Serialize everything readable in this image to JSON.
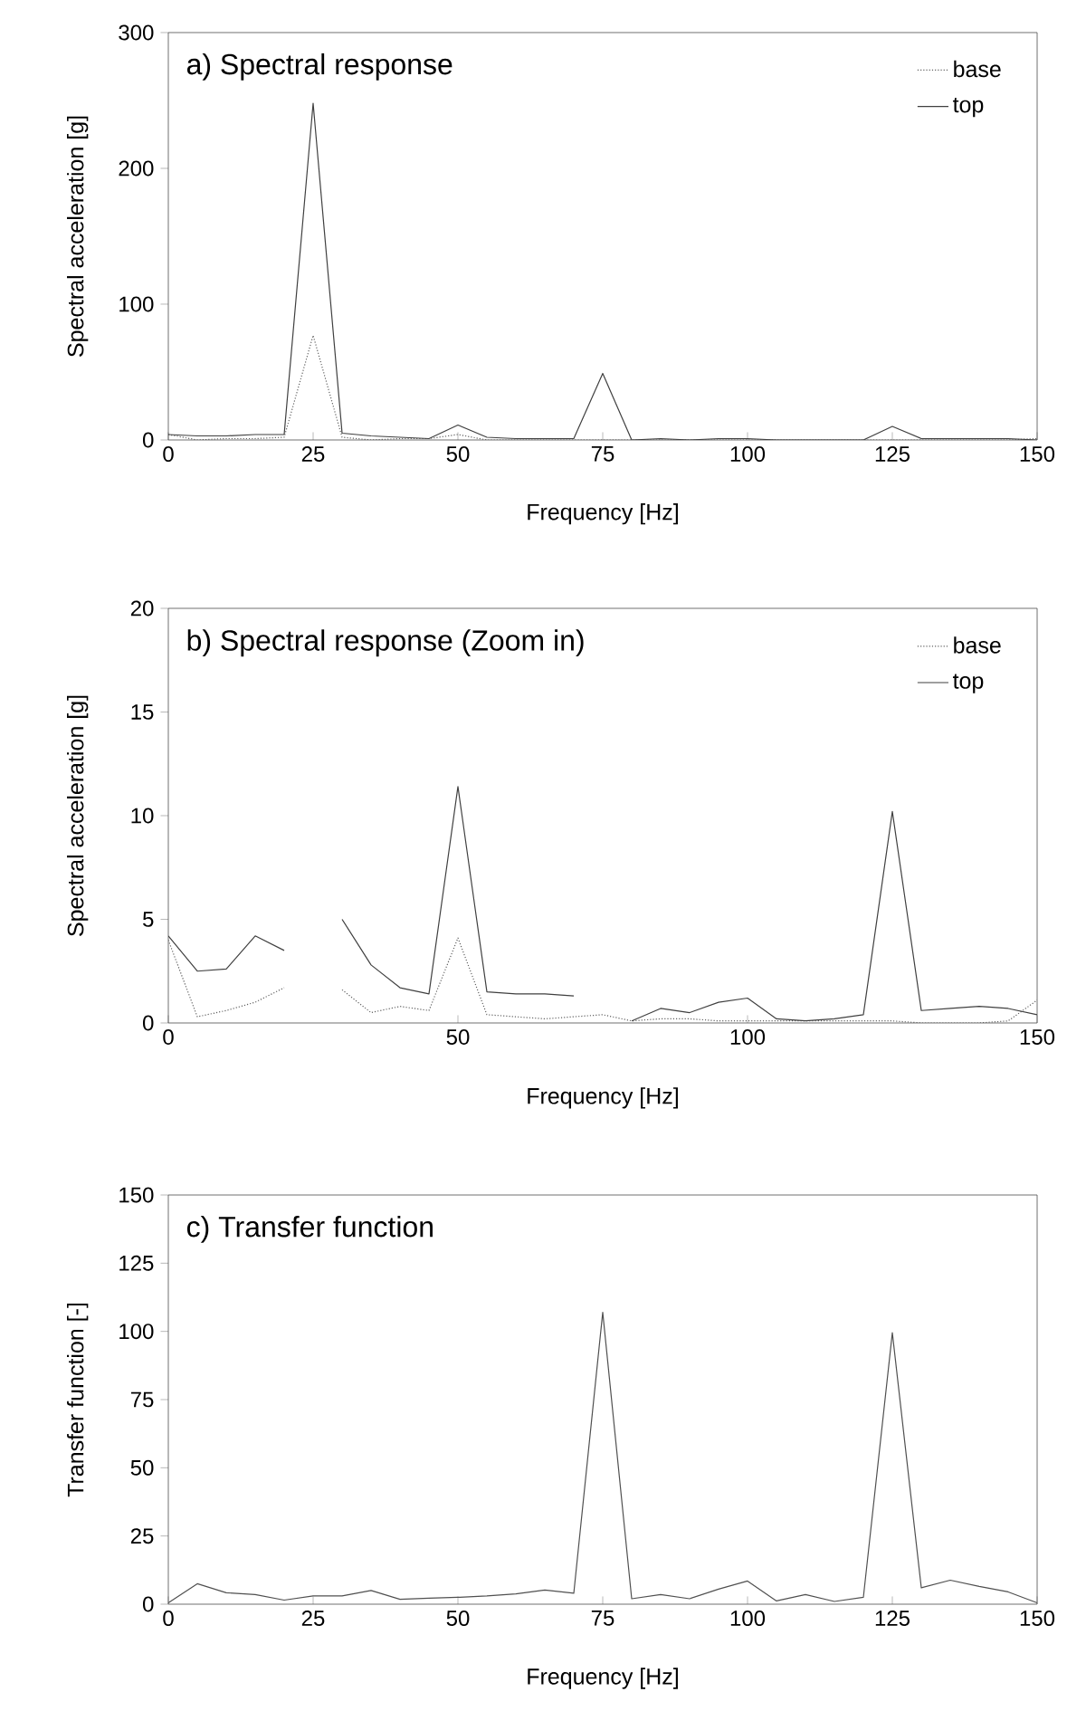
{
  "chart_data": [
    {
      "type": "line",
      "title": "a) Spectral response",
      "xlabel": "Frequency [Hz]",
      "ylabel": "Spectral acceleration [g]",
      "x": [
        0,
        5,
        10,
        15,
        20,
        25,
        30,
        35,
        40,
        45,
        50,
        55,
        60,
        65,
        70,
        75,
        80,
        85,
        90,
        95,
        100,
        105,
        110,
        115,
        120,
        125,
        130,
        135,
        140,
        145,
        150
      ],
      "xlim": [
        0,
        150
      ],
      "xticks": [
        0,
        25,
        50,
        75,
        100,
        125,
        150
      ],
      "ylim": [
        0,
        300
      ],
      "yticks": [
        0,
        100,
        200,
        300
      ],
      "legend": "top right",
      "series": [
        {
          "name": "base",
          "color": "#606060",
          "line_style": "dotted",
          "values": [
            4,
            0,
            1,
            1,
            2,
            77,
            2,
            0,
            1,
            1,
            4,
            0,
            0,
            0,
            0,
            0,
            0,
            0,
            0,
            0,
            0,
            0,
            0,
            0,
            0,
            0,
            0,
            0,
            0,
            0,
            1
          ]
        },
        {
          "name": "top",
          "color": "#404040",
          "line_style": "solid",
          "values": [
            4,
            3,
            3,
            4,
            4,
            248,
            5,
            3,
            2,
            1,
            11,
            2,
            1,
            1,
            1,
            49,
            0,
            1,
            0,
            1,
            1,
            0,
            0,
            0,
            0,
            10,
            1,
            1,
            1,
            1,
            0
          ]
        }
      ]
    },
    {
      "type": "line",
      "title": "b) Spectral response (Zoom in)",
      "xlabel": "Frequency [Hz]",
      "ylabel": "Spectral acceleration [g]",
      "x": [
        0,
        5,
        10,
        15,
        20,
        25,
        30,
        35,
        40,
        45,
        50,
        55,
        60,
        65,
        70,
        75,
        80,
        85,
        90,
        95,
        100,
        105,
        110,
        115,
        120,
        125,
        130,
        135,
        140,
        145,
        150
      ],
      "xlim": [
        0,
        150
      ],
      "xticks": [
        0,
        50,
        100,
        150
      ],
      "ylim": [
        0,
        20
      ],
      "yticks": [
        0,
        5,
        10,
        15,
        20
      ],
      "legend": "top right",
      "series": [
        {
          "name": "base",
          "color": "#606060",
          "line_style": "dotted",
          "values": [
            4.0,
            0.3,
            0.6,
            1.0,
            1.7,
            null,
            1.6,
            0.5,
            0.8,
            0.6,
            4.1,
            0.4,
            0.3,
            0.2,
            0.3,
            0.4,
            0.1,
            0.2,
            0.2,
            0.1,
            0.1,
            0.1,
            0.1,
            0.1,
            0.1,
            0.1,
            0.0,
            0.0,
            0.0,
            0.1,
            1.1
          ]
        },
        {
          "name": "top",
          "color": "#404040",
          "line_style": "solid",
          "values": [
            4.2,
            2.5,
            2.6,
            4.2,
            3.5,
            null,
            5.0,
            2.8,
            1.7,
            1.4,
            11.4,
            1.5,
            1.4,
            1.4,
            1.3,
            null,
            0.1,
            0.7,
            0.5,
            1.0,
            1.2,
            0.2,
            0.1,
            0.2,
            0.4,
            10.2,
            0.6,
            0.7,
            0.8,
            0.7,
            0.4
          ]
        }
      ]
    },
    {
      "type": "line",
      "title": "c) Transfer function",
      "xlabel": "Frequency [Hz]",
      "ylabel": "Transfer function [-]",
      "x": [
        0,
        5,
        10,
        15,
        20,
        25,
        30,
        35,
        40,
        45,
        50,
        55,
        60,
        65,
        70,
        75,
        80,
        85,
        90,
        95,
        100,
        105,
        110,
        115,
        120,
        125,
        130,
        135,
        140,
        145,
        150
      ],
      "xlim": [
        0,
        150
      ],
      "xticks": [
        0,
        25,
        50,
        75,
        100,
        125,
        150
      ],
      "ylim": [
        0,
        150
      ],
      "yticks": [
        0,
        25,
        50,
        75,
        100,
        125,
        150
      ],
      "legend": false,
      "series": [
        {
          "color": "#505050",
          "line_style": "solid",
          "values": [
            0.5,
            7.5,
            4.2,
            3.5,
            1.5,
            3,
            3,
            5,
            1.8,
            2.2,
            2.5,
            3,
            3.8,
            5.2,
            4,
            107,
            2,
            3.5,
            2,
            5.5,
            8.5,
            1.2,
            3.5,
            1.0,
            2.5,
            99.5,
            6,
            8.8,
            6.5,
            4.5,
            0.5
          ]
        }
      ]
    }
  ]
}
